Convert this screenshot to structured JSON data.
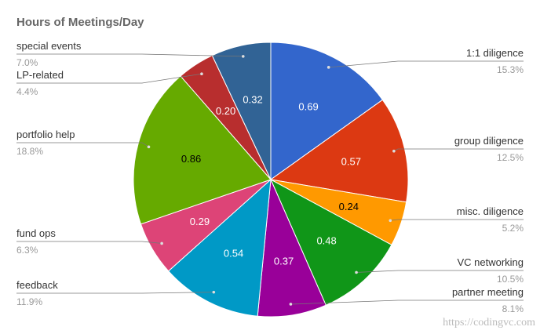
{
  "chart_data": {
    "type": "pie",
    "title": "Hours of Meetings/Day",
    "slices": [
      {
        "label": "1:1 diligence",
        "value": 0.69,
        "value_label": "0.69",
        "percent": "15.3%",
        "color": "#3366cc",
        "text_color": "#ffffff"
      },
      {
        "label": "group diligence",
        "value": 0.57,
        "value_label": "0.57",
        "percent": "12.5%",
        "color": "#dc3912",
        "text_color": "#ffffff"
      },
      {
        "label": "misc. diligence",
        "value": 0.24,
        "value_label": "0.24",
        "percent": "5.2%",
        "color": "#ff9900",
        "text_color": "#000000"
      },
      {
        "label": "VC networking",
        "value": 0.48,
        "value_label": "0.48",
        "percent": "10.5%",
        "color": "#109618",
        "text_color": "#ffffff"
      },
      {
        "label": "partner meeting",
        "value": 0.37,
        "value_label": "0.37",
        "percent": "8.1%",
        "color": "#990099",
        "text_color": "#ffffff"
      },
      {
        "label": "feedback",
        "value": 0.54,
        "value_label": "0.54",
        "percent": "11.9%",
        "color": "#0099c6",
        "text_color": "#ffffff"
      },
      {
        "label": "fund ops",
        "value": 0.29,
        "value_label": "0.29",
        "percent": "6.3%",
        "color": "#dd4477",
        "text_color": "#ffffff"
      },
      {
        "label": "portfolio help",
        "value": 0.86,
        "value_label": "0.86",
        "percent": "18.8%",
        "color": "#66aa00",
        "text_color": "#000000"
      },
      {
        "label": "LP-related",
        "value": 0.2,
        "value_label": "0.20",
        "percent": "4.4%",
        "color": "#b82e2e",
        "text_color": "#ffffff"
      },
      {
        "label": "special events",
        "value": 0.32,
        "value_label": "0.32",
        "percent": "7.0%",
        "color": "#316395",
        "text_color": "#ffffff"
      }
    ],
    "legend_placement": "labeled callouts left and right"
  },
  "watermark": "https://codingvc.com"
}
